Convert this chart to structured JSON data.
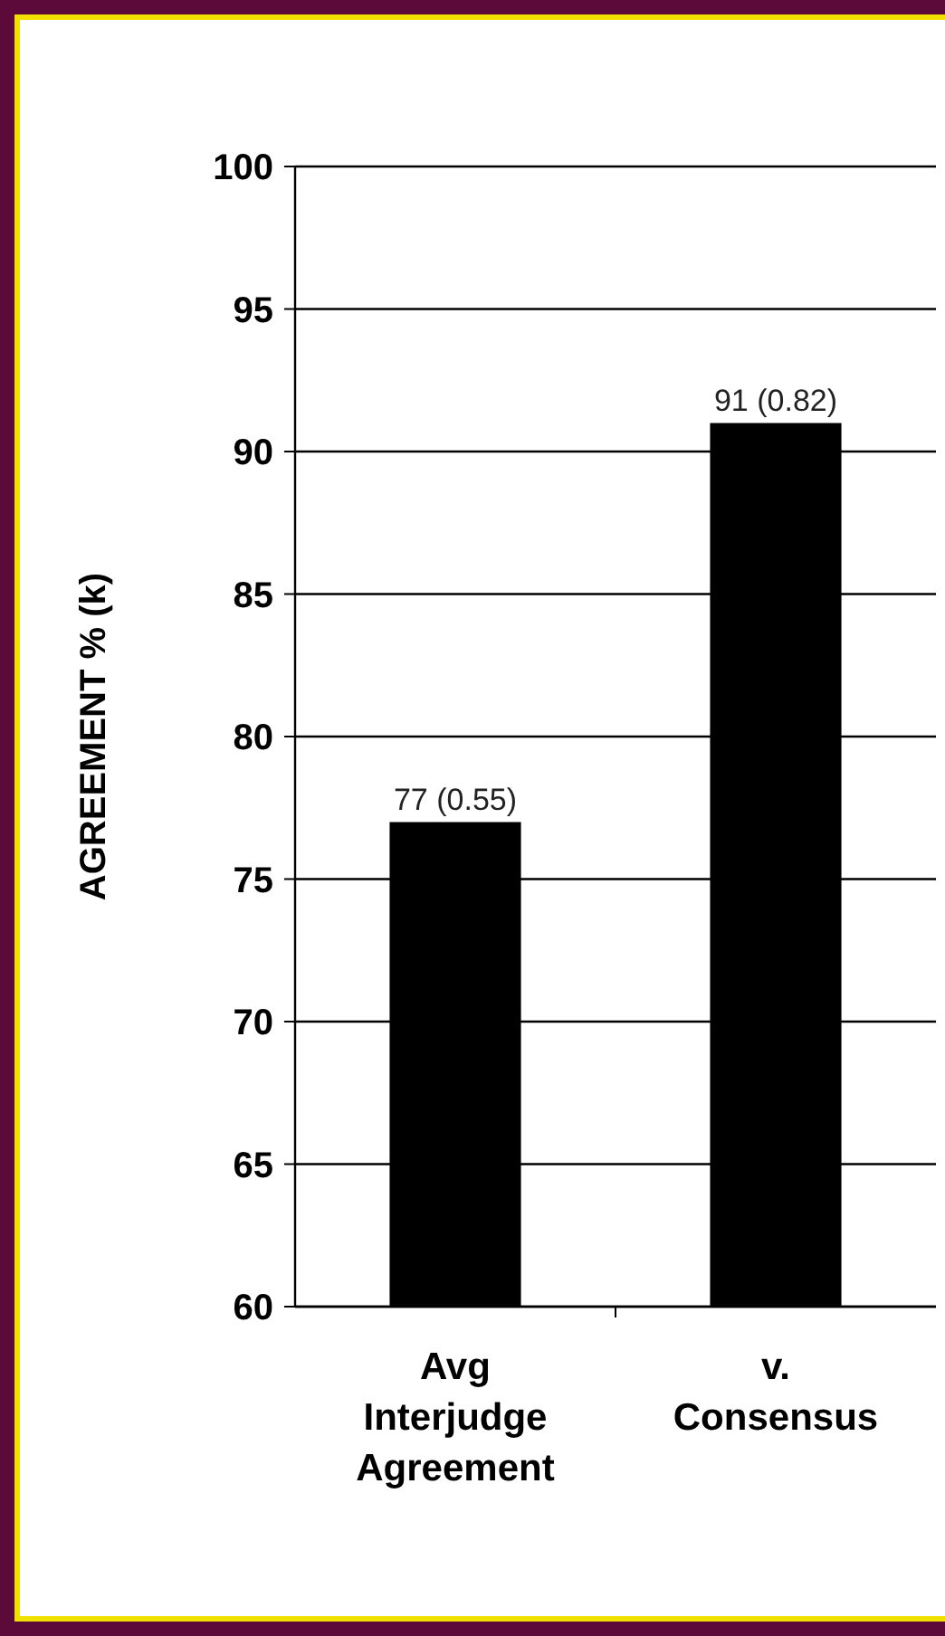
{
  "chart_data": {
    "type": "bar",
    "ylabel": "AGREEMENT % (k)",
    "categories": [
      "Avg\nInterjudge\nAgreement",
      "v.\nConsensus"
    ],
    "values": [
      77,
      91
    ],
    "color": "#000000",
    "value_labels": [
      "77 (0.55)",
      "91 (0.82)"
    ],
    "ylim": [
      60,
      100
    ],
    "yticks": [
      60,
      65,
      70,
      75,
      80,
      85,
      90,
      95,
      100
    ],
    "grid": "y"
  }
}
